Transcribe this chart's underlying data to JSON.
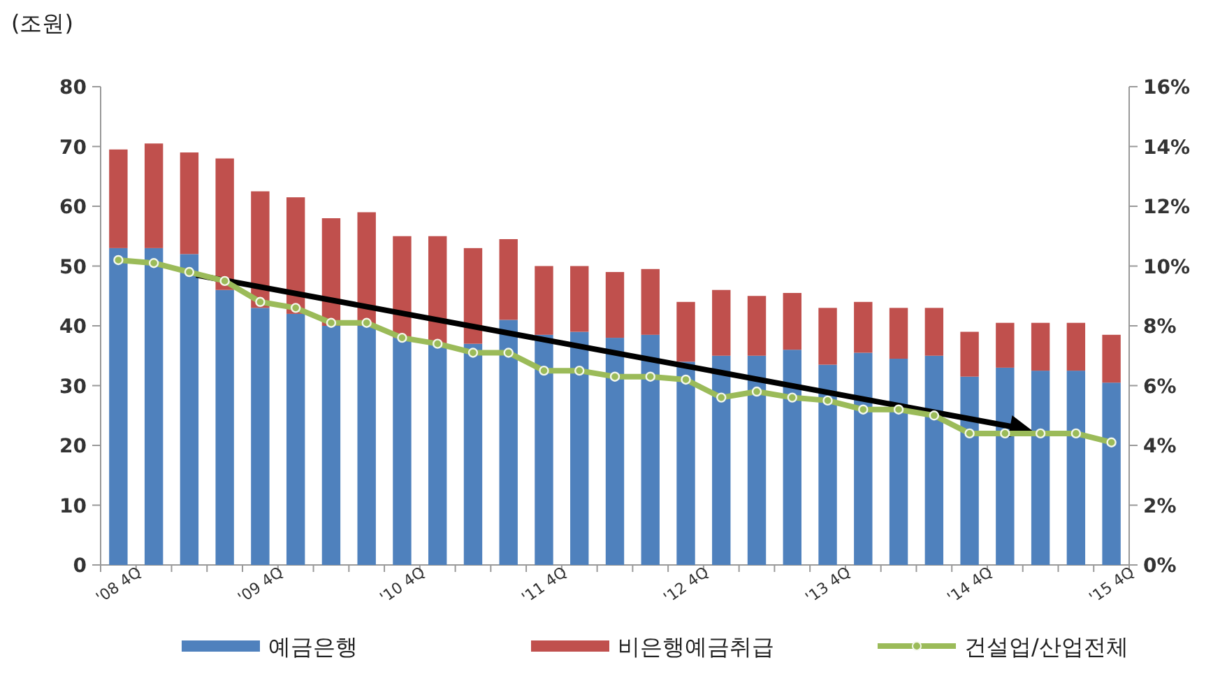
{
  "chart_data": {
    "type": "bar",
    "stacked": true,
    "ylabel": "(조원)",
    "categories": [
      "'08 4Q",
      null,
      null,
      null,
      "'09 4Q",
      null,
      null,
      null,
      "'10 4Q",
      null,
      null,
      null,
      "'11 4Q",
      null,
      null,
      null,
      "'12 4Q",
      null,
      null,
      null,
      "'13 4Q",
      null,
      null,
      null,
      "'14 4Q",
      null,
      null,
      null,
      "'15 4Q"
    ],
    "series": [
      {
        "name": "예금은행",
        "color": "#4f81bd",
        "values": [
          53,
          53,
          52,
          46,
          43,
          42,
          40,
          40,
          38,
          37,
          37,
          41,
          38.5,
          39,
          38,
          38.5,
          34,
          35,
          35,
          36,
          33.5,
          35.5,
          34.5,
          35,
          31.5,
          33,
          32.5,
          32.5,
          30.5
        ]
      },
      {
        "name": "비은행예금취급",
        "color": "#c0504d",
        "values": [
          16.5,
          17.5,
          17,
          22,
          19.5,
          19.5,
          18,
          19,
          17,
          18,
          16,
          13.5,
          11.5,
          11,
          11,
          11,
          10,
          11,
          10,
          9.5,
          9.5,
          8.5,
          8.5,
          8,
          7.5,
          7.5,
          8,
          8,
          8
        ]
      },
      {
        "name": "건설업/산업전체",
        "type": "line",
        "axis": "y2",
        "color": "#9bbb59",
        "marker": "circle",
        "values": [
          10.2,
          10.1,
          9.8,
          9.5,
          8.8,
          8.6,
          8.1,
          8.1,
          7.6,
          7.4,
          7.1,
          7.1,
          6.5,
          6.5,
          6.3,
          6.3,
          6.2,
          5.6,
          5.8,
          5.6,
          5.5,
          5.2,
          5.2,
          5.0,
          4.4,
          4.4,
          4.4,
          4.4,
          4.1
        ]
      }
    ],
    "ylim": [
      0,
      80
    ],
    "yticks": [
      0,
      10,
      20,
      30,
      40,
      50,
      60,
      70,
      80
    ],
    "y2lim": [
      0,
      16
    ],
    "y2ticks": [
      {
        "value": 0,
        "label": "0%"
      },
      {
        "value": 2,
        "label": "2%"
      },
      {
        "value": 4,
        "label": "4%"
      },
      {
        "value": 6,
        "label": "6%"
      },
      {
        "value": 8,
        "label": "8%"
      },
      {
        "value": 10,
        "label": "10%"
      },
      {
        "value": 12,
        "label": "12%"
      },
      {
        "value": 14,
        "label": "14%"
      },
      {
        "value": 16,
        "label": "16%"
      }
    ],
    "grid": false,
    "legend": "bottom"
  }
}
